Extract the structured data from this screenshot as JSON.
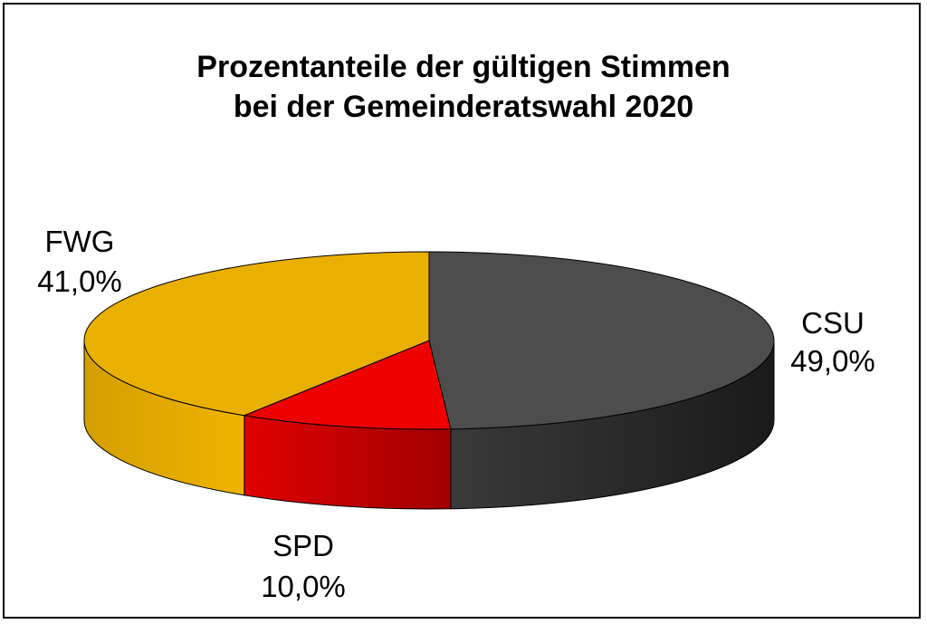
{
  "chart_data": {
    "type": "pie",
    "title_lines": [
      "Prozentanteile der gültigen Stimmen",
      "bei der Gemeinderatswahl 2020"
    ],
    "slices": [
      {
        "label": "CSU",
        "value": 49.0,
        "value_text": "49,0%",
        "color": "#4d4d4d",
        "side_color": "#2a2a2a"
      },
      {
        "label": "SPD",
        "value": 10.0,
        "value_text": "10,0%",
        "color": "#ee0000",
        "side_color": "#b30000"
      },
      {
        "label": "FWG",
        "value": 41.0,
        "value_text": "41,0%",
        "color": "#eab000",
        "side_color": "#c99500"
      }
    ],
    "style": "3d"
  }
}
